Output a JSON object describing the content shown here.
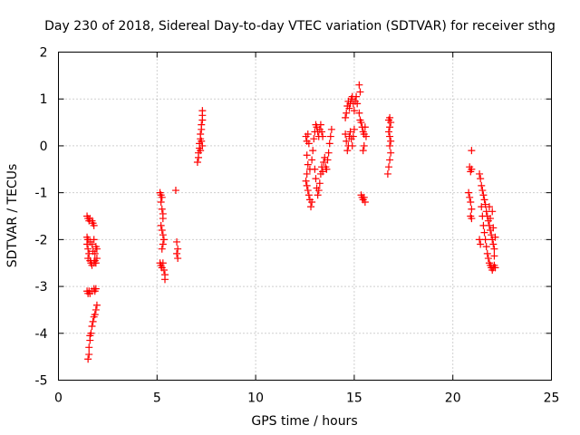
{
  "chart_data": {
    "type": "scatter",
    "title": "Day 230 of 2018, Sidereal Day-to-day VTEC variation (SDTVAR) for receiver sthg",
    "xlabel": "GPS time / hours",
    "ylabel": "SDTVAR / TECUs",
    "xlim": [
      0,
      25
    ],
    "ylim": [
      -5,
      2
    ],
    "x_ticks": [
      0,
      5,
      10,
      15,
      20,
      25
    ],
    "x_tick_labels": [
      "0",
      "5",
      "10",
      "15",
      "20",
      "25"
    ],
    "y_ticks": [
      -5,
      -4,
      -3,
      -2,
      -1,
      0,
      1,
      2
    ],
    "y_tick_labels": [
      "-5",
      "-4",
      "-3",
      "-2",
      "-1",
      "0",
      "1",
      "2"
    ],
    "grid": true,
    "marker": "+",
    "color": "#ff0000",
    "series": [
      {
        "name": "SDTVAR",
        "points": [
          [
            1.45,
            -1.5
          ],
          [
            1.5,
            -1.55
          ],
          [
            1.55,
            -1.6
          ],
          [
            1.6,
            -1.55
          ],
          [
            1.7,
            -1.6
          ],
          [
            1.75,
            -1.65
          ],
          [
            1.8,
            -1.7
          ],
          [
            1.45,
            -1.95
          ],
          [
            1.5,
            -2.0
          ],
          [
            1.45,
            -2.1
          ],
          [
            1.5,
            -2.2
          ],
          [
            1.55,
            -2.3
          ],
          [
            1.5,
            -2.4
          ],
          [
            1.6,
            -2.45
          ],
          [
            1.65,
            -2.5
          ],
          [
            1.7,
            -2.55
          ],
          [
            1.8,
            -2.5
          ],
          [
            1.85,
            -2.45
          ],
          [
            1.9,
            -2.5
          ],
          [
            1.95,
            -2.4
          ],
          [
            1.7,
            -2.1
          ],
          [
            1.8,
            -2.0
          ],
          [
            1.9,
            -2.15
          ],
          [
            1.75,
            -2.25
          ],
          [
            1.85,
            -2.3
          ],
          [
            1.95,
            -2.2
          ],
          [
            1.6,
            -2.05
          ],
          [
            1.45,
            -3.1
          ],
          [
            1.5,
            -3.15
          ],
          [
            1.55,
            -3.1
          ],
          [
            1.6,
            -3.15
          ],
          [
            1.7,
            -3.1
          ],
          [
            1.8,
            -3.05
          ],
          [
            1.85,
            -3.1
          ],
          [
            1.9,
            -3.05
          ],
          [
            1.5,
            -4.55
          ],
          [
            1.55,
            -4.45
          ],
          [
            1.55,
            -4.3
          ],
          [
            1.6,
            -4.15
          ],
          [
            1.6,
            -4.05
          ],
          [
            1.65,
            -4.0
          ],
          [
            1.7,
            -3.85
          ],
          [
            1.75,
            -3.75
          ],
          [
            1.8,
            -3.65
          ],
          [
            1.85,
            -3.6
          ],
          [
            1.9,
            -3.5
          ],
          [
            1.95,
            -3.4
          ],
          [
            5.15,
            -1.0
          ],
          [
            5.2,
            -1.05
          ],
          [
            5.25,
            -1.1
          ],
          [
            5.2,
            -1.2
          ],
          [
            5.25,
            -1.35
          ],
          [
            5.3,
            -1.45
          ],
          [
            5.3,
            -1.55
          ],
          [
            5.2,
            -1.7
          ],
          [
            5.25,
            -1.8
          ],
          [
            5.3,
            -1.9
          ],
          [
            5.35,
            -2.0
          ],
          [
            5.3,
            -2.1
          ],
          [
            5.25,
            -2.2
          ],
          [
            5.15,
            -2.5
          ],
          [
            5.2,
            -2.55
          ],
          [
            5.25,
            -2.6
          ],
          [
            5.3,
            -2.5
          ],
          [
            5.35,
            -2.65
          ],
          [
            5.4,
            -2.75
          ],
          [
            5.4,
            -2.85
          ],
          [
            5.95,
            -0.95
          ],
          [
            6.0,
            -2.05
          ],
          [
            6.05,
            -2.2
          ],
          [
            6.0,
            -2.3
          ],
          [
            6.05,
            -2.4
          ],
          [
            7.05,
            -0.35
          ],
          [
            7.1,
            -0.25
          ],
          [
            7.1,
            -0.15
          ],
          [
            7.15,
            -0.05
          ],
          [
            7.15,
            0.05
          ],
          [
            7.2,
            0.15
          ],
          [
            7.2,
            0.25
          ],
          [
            7.25,
            0.35
          ],
          [
            7.25,
            0.45
          ],
          [
            7.3,
            0.55
          ],
          [
            7.3,
            0.65
          ],
          [
            7.3,
            0.75
          ],
          [
            7.2,
            -0.1
          ],
          [
            7.25,
            0.1
          ],
          [
            7.3,
            0.0
          ],
          [
            12.55,
            0.2
          ],
          [
            12.6,
            0.1
          ],
          [
            12.65,
            0.25
          ],
          [
            12.7,
            0.05
          ],
          [
            12.6,
            -0.2
          ],
          [
            12.65,
            -0.4
          ],
          [
            12.6,
            -0.6
          ],
          [
            12.55,
            -0.75
          ],
          [
            12.6,
            -0.85
          ],
          [
            12.65,
            -0.95
          ],
          [
            12.7,
            -1.05
          ],
          [
            12.75,
            -1.15
          ],
          [
            12.8,
            -1.3
          ],
          [
            12.85,
            -1.2
          ],
          [
            12.75,
            -0.5
          ],
          [
            12.85,
            -0.3
          ],
          [
            12.9,
            -0.1
          ],
          [
            12.95,
            0.15
          ],
          [
            13.0,
            0.3
          ],
          [
            13.05,
            0.45
          ],
          [
            13.1,
            0.4
          ],
          [
            13.15,
            0.3
          ],
          [
            13.2,
            0.2
          ],
          [
            13.25,
            0.35
          ],
          [
            13.3,
            0.45
          ],
          [
            13.35,
            0.3
          ],
          [
            13.4,
            0.2
          ],
          [
            13.0,
            -0.5
          ],
          [
            13.05,
            -0.7
          ],
          [
            13.1,
            -0.9
          ],
          [
            13.15,
            -1.05
          ],
          [
            13.2,
            -0.95
          ],
          [
            13.25,
            -0.8
          ],
          [
            13.3,
            -0.6
          ],
          [
            13.35,
            -0.45
          ],
          [
            13.4,
            -0.55
          ],
          [
            13.45,
            -0.35
          ],
          [
            13.5,
            -0.25
          ],
          [
            13.55,
            -0.45
          ],
          [
            13.6,
            -0.5
          ],
          [
            13.65,
            -0.3
          ],
          [
            13.7,
            -0.15
          ],
          [
            13.75,
            0.05
          ],
          [
            13.8,
            0.2
          ],
          [
            13.85,
            0.35
          ],
          [
            14.55,
            0.6
          ],
          [
            14.6,
            0.7
          ],
          [
            14.65,
            0.85
          ],
          [
            14.7,
            0.95
          ],
          [
            14.75,
            0.8
          ],
          [
            14.8,
            0.9
          ],
          [
            14.85,
            1.0
          ],
          [
            14.9,
            1.05
          ],
          [
            14.95,
            0.9
          ],
          [
            15.0,
            0.75
          ],
          [
            15.05,
            0.95
          ],
          [
            15.1,
            1.05
          ],
          [
            15.15,
            0.9
          ],
          [
            14.55,
            0.25
          ],
          [
            14.6,
            0.1
          ],
          [
            14.65,
            -0.1
          ],
          [
            14.7,
            0.0
          ],
          [
            14.75,
            0.2
          ],
          [
            14.8,
            0.3
          ],
          [
            14.85,
            0.15
          ],
          [
            14.9,
            0.0
          ],
          [
            14.95,
            0.2
          ],
          [
            15.0,
            0.35
          ],
          [
            15.25,
            1.3
          ],
          [
            15.3,
            1.15
          ],
          [
            15.25,
            0.7
          ],
          [
            15.3,
            0.55
          ],
          [
            15.35,
            0.5
          ],
          [
            15.4,
            0.4
          ],
          [
            15.45,
            0.3
          ],
          [
            15.5,
            0.25
          ],
          [
            15.55,
            0.4
          ],
          [
            15.6,
            0.2
          ],
          [
            15.5,
            0.0
          ],
          [
            15.45,
            -0.1
          ],
          [
            15.35,
            -1.05
          ],
          [
            15.4,
            -1.1
          ],
          [
            15.45,
            -1.15
          ],
          [
            15.5,
            -1.1
          ],
          [
            15.55,
            -1.2
          ],
          [
            16.75,
            0.55
          ],
          [
            16.8,
            0.6
          ],
          [
            16.85,
            0.5
          ],
          [
            16.8,
            0.4
          ],
          [
            16.75,
            0.3
          ],
          [
            16.8,
            0.2
          ],
          [
            16.85,
            0.1
          ],
          [
            16.8,
            0.0
          ],
          [
            16.85,
            -0.15
          ],
          [
            16.8,
            -0.3
          ],
          [
            16.75,
            -0.45
          ],
          [
            16.7,
            -0.6
          ],
          [
            20.95,
            -0.1
          ],
          [
            20.85,
            -0.45
          ],
          [
            20.9,
            -0.55
          ],
          [
            20.95,
            -0.5
          ],
          [
            20.8,
            -1.0
          ],
          [
            20.85,
            -1.1
          ],
          [
            20.9,
            -1.2
          ],
          [
            20.95,
            -1.35
          ],
          [
            20.9,
            -1.5
          ],
          [
            20.95,
            -1.55
          ],
          [
            21.35,
            -0.6
          ],
          [
            21.4,
            -0.7
          ],
          [
            21.45,
            -0.85
          ],
          [
            21.5,
            -0.95
          ],
          [
            21.55,
            -1.05
          ],
          [
            21.6,
            -1.15
          ],
          [
            21.65,
            -1.25
          ],
          [
            21.7,
            -1.4
          ],
          [
            21.75,
            -1.5
          ],
          [
            21.8,
            -1.6
          ],
          [
            21.85,
            -1.7
          ],
          [
            21.9,
            -1.8
          ],
          [
            21.95,
            -1.9
          ],
          [
            22.0,
            -2.0
          ],
          [
            22.05,
            -2.1
          ],
          [
            22.1,
            -2.2
          ],
          [
            22.15,
            -1.95
          ],
          [
            21.45,
            -1.3
          ],
          [
            21.5,
            -1.5
          ],
          [
            21.55,
            -1.7
          ],
          [
            21.6,
            -1.85
          ],
          [
            21.65,
            -2.0
          ],
          [
            21.7,
            -2.15
          ],
          [
            21.75,
            -2.3
          ],
          [
            21.8,
            -2.4
          ],
          [
            21.85,
            -2.5
          ],
          [
            21.9,
            -2.55
          ],
          [
            21.95,
            -2.6
          ],
          [
            22.0,
            -2.65
          ],
          [
            22.05,
            -2.6
          ],
          [
            22.1,
            -2.55
          ],
          [
            22.15,
            -2.6
          ],
          [
            21.35,
            -2.0
          ],
          [
            21.4,
            -2.1
          ],
          [
            21.85,
            -1.3
          ],
          [
            21.9,
            -1.55
          ],
          [
            22.0,
            -1.4
          ],
          [
            22.05,
            -1.75
          ],
          [
            22.1,
            -2.35
          ]
        ]
      }
    ]
  }
}
